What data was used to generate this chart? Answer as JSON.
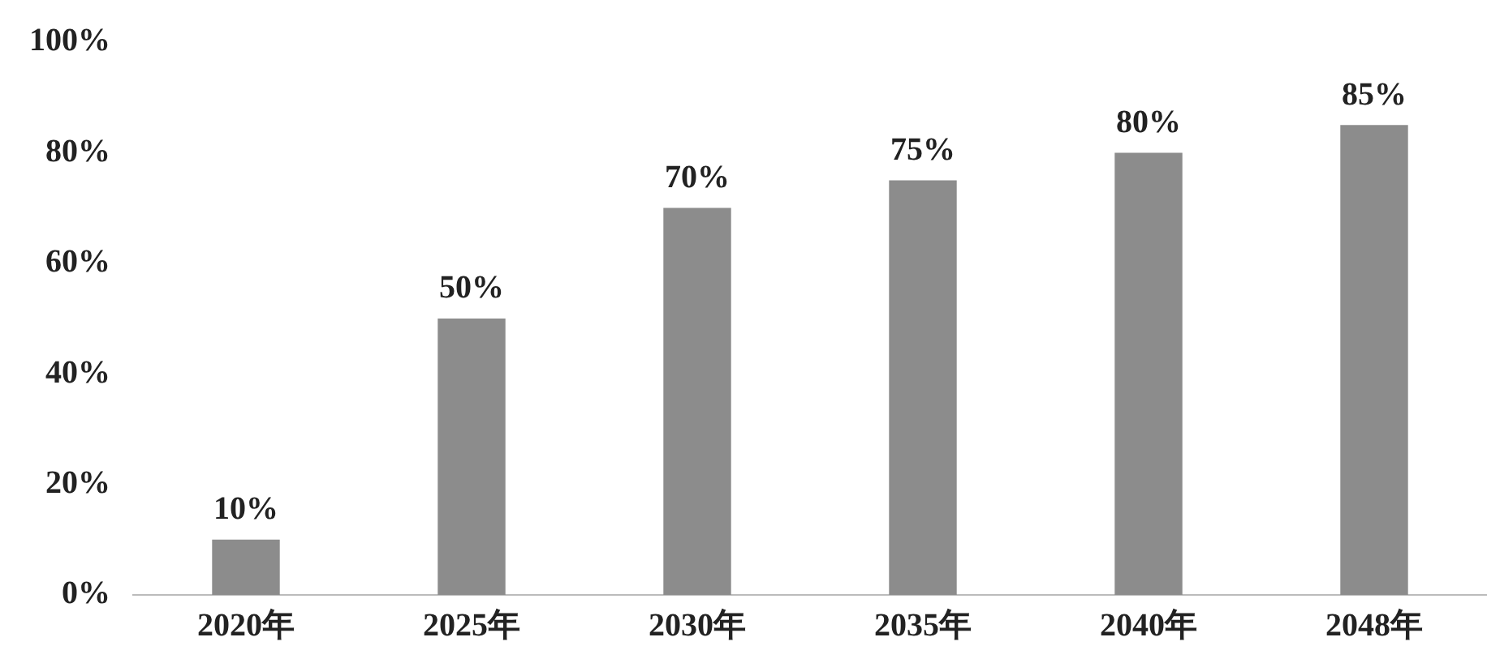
{
  "chart_data": {
    "type": "bar",
    "categories": [
      "2020年",
      "2025年",
      "2030年",
      "2035年",
      "2040年",
      "2048年"
    ],
    "values": [
      10,
      50,
      70,
      75,
      80,
      85
    ],
    "value_labels": [
      "10%",
      "50%",
      "70%",
      "75%",
      "80%",
      "85%"
    ],
    "color": "#8c8c8c",
    "ylim": [
      0,
      100
    ],
    "yticks": [
      {
        "value": 0,
        "label": "0%"
      },
      {
        "value": 20,
        "label": "20%"
      },
      {
        "value": 40,
        "label": "40%"
      },
      {
        "value": 60,
        "label": "60%"
      },
      {
        "value": 80,
        "label": "80%"
      },
      {
        "value": 100,
        "label": "100%"
      }
    ],
    "grid": false,
    "legend": false
  }
}
